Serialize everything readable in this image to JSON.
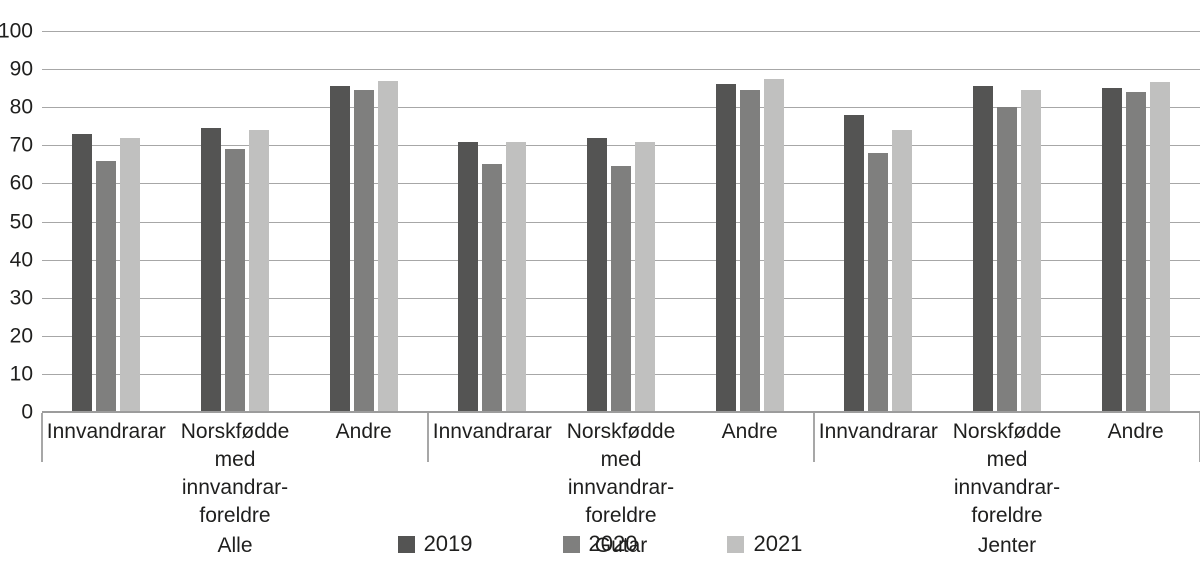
{
  "chart_data": {
    "type": "bar",
    "title": "",
    "xlabel": "",
    "ylabel": "",
    "ylim": [
      0,
      100
    ],
    "ytick_step": 10,
    "grid": true,
    "legend_position": "bottom",
    "series_names": [
      "2019",
      "2020",
      "2021"
    ],
    "series_colors": [
      "#545453",
      "#7f7f7e",
      "#c0c0bf"
    ],
    "colors": {
      "background": "#ffffff",
      "grid": "#a7a7a7",
      "baseline": "#9c9c9c",
      "text": "#1f1f1e"
    },
    "groups": [
      {
        "label": "Alle",
        "categories": [
          {
            "label": "Innvandrarar",
            "label_lines": [
              "Innvandrarar"
            ],
            "values": [
              73,
              66,
              72
            ]
          },
          {
            "label": "Norskfødde med innvandrar-foreldre",
            "label_lines": [
              "Norskfødde",
              "med innvandrar-",
              "foreldre"
            ],
            "values": [
              74.5,
              69,
              74
            ]
          },
          {
            "label": "Andre",
            "label_lines": [
              "Andre"
            ],
            "values": [
              85.5,
              84.5,
              87
            ]
          }
        ]
      },
      {
        "label": "Gutar",
        "categories": [
          {
            "label": "Innvandrarar",
            "label_lines": [
              "Innvandrarar"
            ],
            "values": [
              71,
              65,
              71
            ]
          },
          {
            "label": "Norskfødde med innvandrar-foreldre",
            "label_lines": [
              "Norskfødde",
              "med innvandrar-",
              "foreldre"
            ],
            "values": [
              72,
              64.5,
              71
            ]
          },
          {
            "label": "Andre",
            "label_lines": [
              "Andre"
            ],
            "values": [
              86,
              84.5,
              87.5
            ]
          }
        ]
      },
      {
        "label": "Jenter",
        "categories": [
          {
            "label": "Innvandrarar",
            "label_lines": [
              "Innvandrarar"
            ],
            "values": [
              78,
              68,
              74
            ]
          },
          {
            "label": "Norskfødde med innvandrar-foreldre",
            "label_lines": [
              "Norskfødde",
              "med innvandrar-",
              "foreldre"
            ],
            "values": [
              85.5,
              80,
              84.5
            ]
          },
          {
            "label": "Andre",
            "label_lines": [
              "Andre"
            ],
            "values": [
              85,
              84,
              86.5
            ]
          }
        ]
      }
    ],
    "legend": [
      "2019",
      "2020",
      "2021"
    ]
  }
}
